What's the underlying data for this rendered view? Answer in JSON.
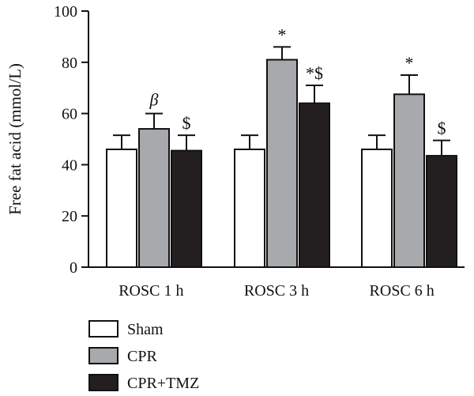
{
  "chart_data": {
    "type": "bar",
    "ylabel": "Free fat acid (mmol/L)",
    "ylim": [
      0,
      100
    ],
    "yticks": [
      0,
      20,
      40,
      60,
      80,
      100
    ],
    "categories": [
      "ROSC 1 h",
      "ROSC 3 h",
      "ROSC 6 h"
    ],
    "series": [
      {
        "name": "Sham",
        "values": [
          46,
          46,
          46
        ],
        "errors": [
          5.5,
          5.5,
          5.5
        ],
        "color": "#ffffff",
        "annotations": [
          "",
          "",
          ""
        ]
      },
      {
        "name": "CPR",
        "values": [
          54,
          81,
          67.5
        ],
        "errors": [
          6,
          5,
          7.5
        ],
        "color": "#a7a9ac",
        "annotations": [
          "β",
          "*",
          "*"
        ]
      },
      {
        "name": "CPR+TMZ",
        "values": [
          45.5,
          64,
          43.5
        ],
        "errors": [
          6,
          7,
          6
        ],
        "color": "#231f20",
        "annotations": [
          "$",
          "*$",
          "$"
        ]
      }
    ],
    "grid": false,
    "legend_position": "bottom-left"
  }
}
